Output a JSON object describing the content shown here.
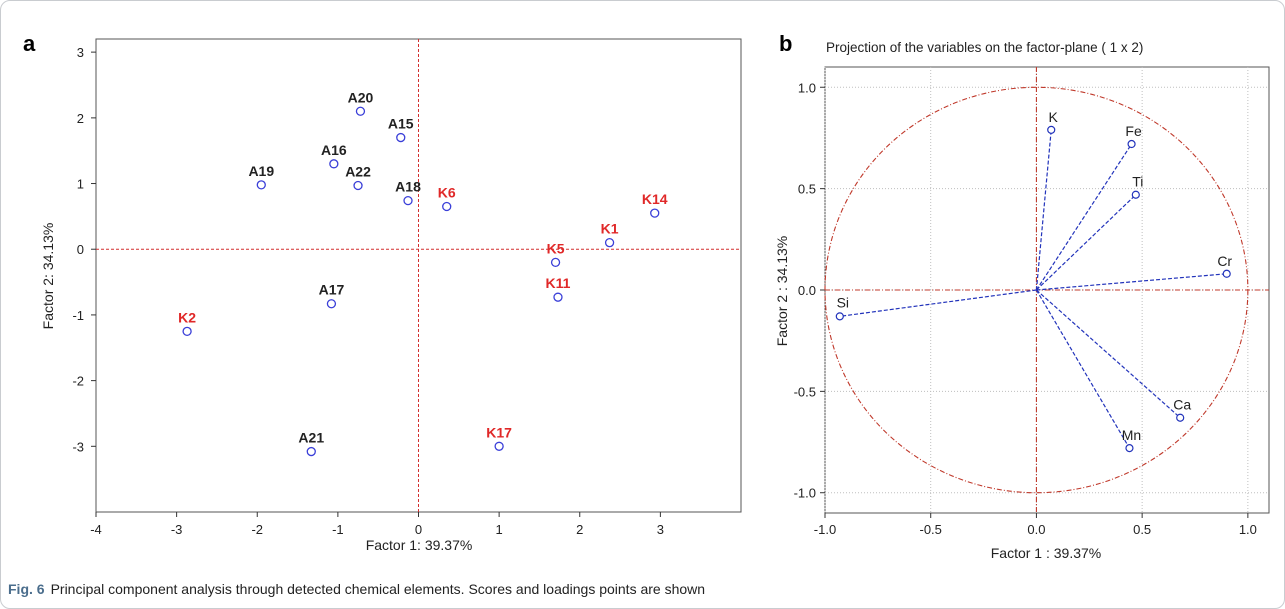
{
  "figure": {
    "caption_label": "Fig. 6",
    "caption_text": "Principal component analysis through detected chemical elements. Scores and loadings points are shown"
  },
  "colors": {
    "marker": "#3a3fd8",
    "label_a": "#222222",
    "label_k": "#e02828",
    "ref_line": "#d32f2f",
    "vector": "#2233bb",
    "circle": "#c0392b",
    "grid": "#bfbfbf"
  },
  "chart_data": [
    {
      "panel": "a",
      "type": "scatter",
      "title": "",
      "xlabel": "Factor 1: 39.37%",
      "ylabel": "Factor 2: 34.13%",
      "xlim": [
        -4,
        4
      ],
      "ylim": [
        -4,
        3.2
      ],
      "xticks": [
        "-4",
        "-3",
        "-2",
        "-1",
        "0",
        "1",
        "2",
        "3"
      ],
      "yticks": [
        "3",
        "2",
        "1",
        "0",
        "-1",
        "-2",
        "-3"
      ],
      "grid": false,
      "points": [
        {
          "label": "A20",
          "x": -0.72,
          "y": 2.1,
          "group": "A"
        },
        {
          "label": "A15",
          "x": -0.22,
          "y": 1.7,
          "group": "A"
        },
        {
          "label": "A16",
          "x": -1.05,
          "y": 1.3,
          "group": "A"
        },
        {
          "label": "A19",
          "x": -1.95,
          "y": 0.98,
          "group": "A"
        },
        {
          "label": "A22",
          "x": -0.75,
          "y": 0.97,
          "group": "A"
        },
        {
          "label": "A18",
          "x": -0.13,
          "y": 0.74,
          "group": "A"
        },
        {
          "label": "K6",
          "x": 0.35,
          "y": 0.65,
          "group": "K"
        },
        {
          "label": "K14",
          "x": 2.93,
          "y": 0.55,
          "group": "K"
        },
        {
          "label": "K1",
          "x": 2.37,
          "y": 0.1,
          "group": "K"
        },
        {
          "label": "K5",
          "x": 1.7,
          "y": -0.2,
          "group": "K"
        },
        {
          "label": "K11",
          "x": 1.73,
          "y": -0.73,
          "group": "K"
        },
        {
          "label": "A17",
          "x": -1.08,
          "y": -0.83,
          "group": "A"
        },
        {
          "label": "K2",
          "x": -2.87,
          "y": -1.25,
          "group": "K"
        },
        {
          "label": "A21",
          "x": -1.33,
          "y": -3.08,
          "group": "A"
        },
        {
          "label": "K17",
          "x": 1.0,
          "y": -3.0,
          "group": "K"
        }
      ]
    },
    {
      "panel": "b",
      "type": "scatter",
      "title": "Projection of the variables on the factor-plane ( 1 x 2)",
      "xlabel": "Factor 1 : 39.37%",
      "ylabel": "Factor 2 : 34.13%",
      "xlim": [
        -1.0,
        1.1
      ],
      "ylim": [
        -1.1,
        1.1
      ],
      "xticks": [
        "-1.0",
        "-0.5",
        "0.0",
        "0.5",
        "1.0"
      ],
      "yticks": [
        "1.0",
        "0.5",
        "0.0",
        "-0.5",
        "-1.0"
      ],
      "grid": true,
      "unit_circle": true,
      "variables": [
        {
          "label": "K",
          "x": 0.07,
          "y": 0.79
        },
        {
          "label": "Fe",
          "x": 0.45,
          "y": 0.72
        },
        {
          "label": "Ti",
          "x": 0.47,
          "y": 0.47
        },
        {
          "label": "Cr",
          "x": 0.9,
          "y": 0.08
        },
        {
          "label": "Si",
          "x": -0.93,
          "y": -0.13
        },
        {
          "label": "Ca",
          "x": 0.68,
          "y": -0.63
        },
        {
          "label": "Mn",
          "x": 0.44,
          "y": -0.78
        }
      ]
    }
  ]
}
